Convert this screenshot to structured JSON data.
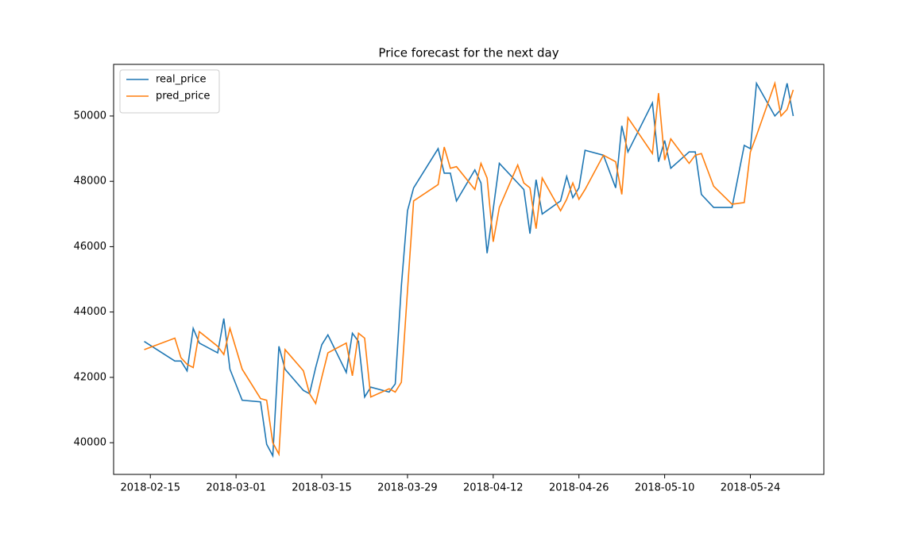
{
  "chart_data": {
    "type": "line",
    "title": "Price forecast for the next day",
    "x": [
      "2018-02-14",
      "2018-02-19",
      "2018-02-20",
      "2018-02-21",
      "2018-02-22",
      "2018-02-23",
      "2018-02-26",
      "2018-02-27",
      "2018-02-28",
      "2018-03-02",
      "2018-03-05",
      "2018-03-06",
      "2018-03-07",
      "2018-03-08",
      "2018-03-09",
      "2018-03-12",
      "2018-03-13",
      "2018-03-14",
      "2018-03-15",
      "2018-03-16",
      "2018-03-19",
      "2018-03-20",
      "2018-03-21",
      "2018-03-22",
      "2018-03-23",
      "2018-03-26",
      "2018-03-27",
      "2018-03-28",
      "2018-03-29",
      "2018-03-30",
      "2018-04-03",
      "2018-04-04",
      "2018-04-05",
      "2018-04-06",
      "2018-04-09",
      "2018-04-10",
      "2018-04-11",
      "2018-04-12",
      "2018-04-13",
      "2018-04-16",
      "2018-04-17",
      "2018-04-18",
      "2018-04-19",
      "2018-04-20",
      "2018-04-23",
      "2018-04-24",
      "2018-04-25",
      "2018-04-26",
      "2018-04-27",
      "2018-04-30",
      "2018-05-02",
      "2018-05-03",
      "2018-05-04",
      "2018-05-08",
      "2018-05-09",
      "2018-05-10",
      "2018-05-11",
      "2018-05-14",
      "2018-05-15",
      "2018-05-16",
      "2018-05-18",
      "2018-05-21",
      "2018-05-23",
      "2018-05-24",
      "2018-05-25",
      "2018-05-28",
      "2018-05-29",
      "2018-05-30",
      "2018-05-31"
    ],
    "series": [
      {
        "name": "real_price",
        "color": "#1f77b4",
        "values": [
          43100,
          42500,
          42500,
          42200,
          43500,
          43050,
          42750,
          43800,
          42250,
          41300,
          41250,
          39950,
          39600,
          42950,
          42250,
          41600,
          41500,
          42300,
          43000,
          43300,
          42150,
          43350,
          43100,
          41400,
          41700,
          41550,
          41800,
          44800,
          47100,
          47800,
          49000,
          48250,
          48250,
          47400,
          48350,
          47950,
          45800,
          47150,
          48550,
          47950,
          47750,
          46400,
          48050,
          47000,
          47400,
          48150,
          47500,
          47800,
          48950,
          48800,
          47800,
          49700,
          48900,
          50400,
          48600,
          49250,
          48400,
          48900,
          48900,
          47600,
          47200,
          47200,
          49100,
          49000,
          51000,
          50000,
          50200,
          51000,
          50000
        ]
      },
      {
        "name": "pred_price",
        "color": "#ff7f0e",
        "values": [
          42850,
          43200,
          42600,
          42400,
          42300,
          43400,
          42950,
          42700,
          43500,
          42250,
          41350,
          41300,
          40000,
          39650,
          42850,
          42200,
          41500,
          41200,
          42000,
          42750,
          43050,
          42050,
          43350,
          43200,
          41400,
          41650,
          41550,
          41850,
          44650,
          47400,
          47900,
          49050,
          48400,
          48450,
          47750,
          48550,
          48100,
          46150,
          47200,
          48500,
          47950,
          47800,
          46550,
          48100,
          47100,
          47450,
          47950,
          47450,
          47750,
          48800,
          48600,
          47600,
          49950,
          48850,
          50700,
          48650,
          49300,
          48550,
          48800,
          48850,
          47850,
          47300,
          47350,
          48900,
          49400,
          51000,
          50000,
          50200,
          50800
        ]
      }
    ],
    "xlim": [
      "2018-02-09",
      "2018-06-05"
    ],
    "xticks": [
      "2018-02-15",
      "2018-03-01",
      "2018-03-15",
      "2018-03-29",
      "2018-04-12",
      "2018-04-26",
      "2018-05-10",
      "2018-05-24"
    ],
    "ylim": [
      39030,
      51580
    ],
    "yticks": [
      40000,
      42000,
      44000,
      46000,
      48000,
      50000
    ],
    "legend": "upper left"
  }
}
